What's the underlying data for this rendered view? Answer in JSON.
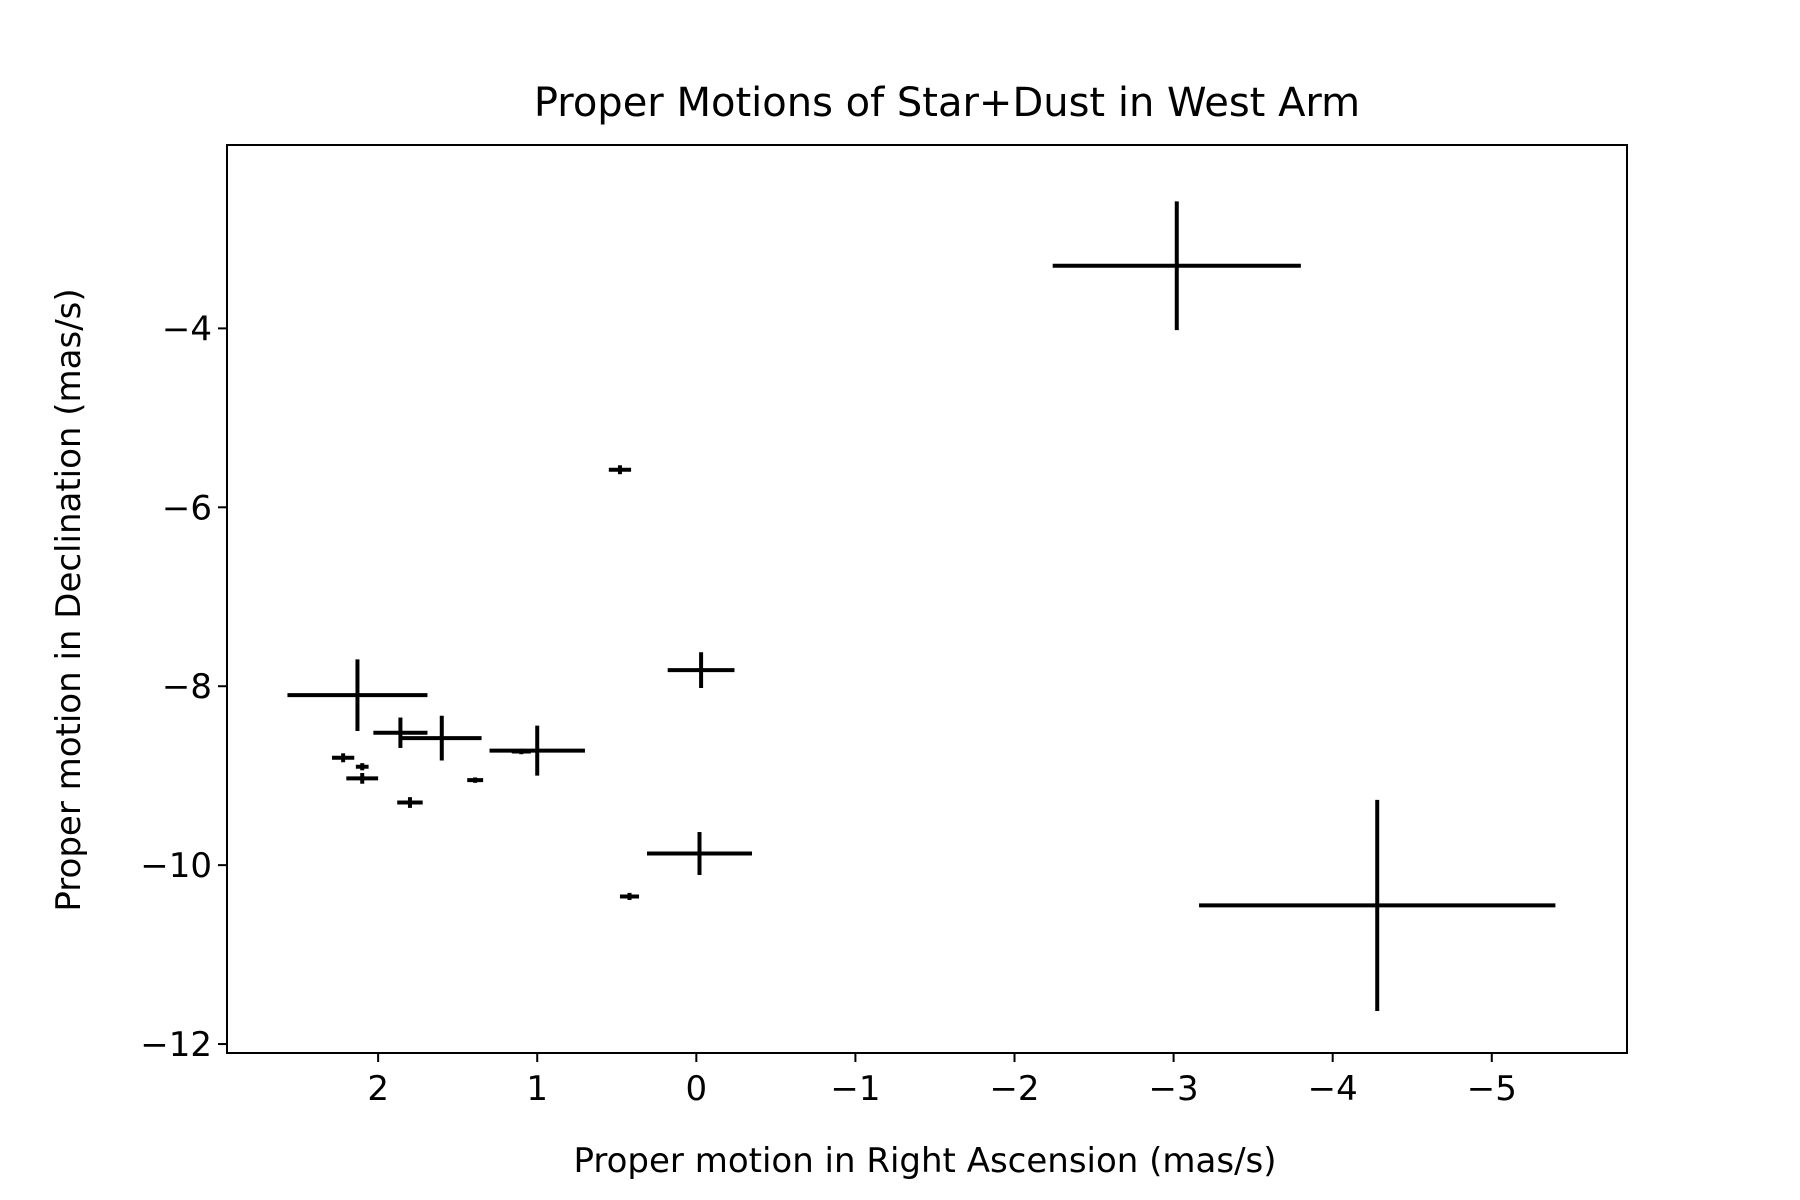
{
  "chart_data": {
    "type": "scatter",
    "title": "Proper Motions of Star+Dust in West Arm",
    "xlabel": "Proper motion in Right Ascension (mas/s)",
    "ylabel": "Proper motion in Declination (mas/s)",
    "xlim": [
      2.95,
      -5.85
    ],
    "ylim": [
      -12.1,
      -1.95
    ],
    "x_ticks": [
      2,
      1,
      0,
      -1,
      -2,
      -3,
      -4,
      -5
    ],
    "x_tick_labels": [
      "2",
      "1",
      "0",
      "−1",
      "−2",
      "−3",
      "−4",
      "−5"
    ],
    "y_ticks": [
      -4,
      -6,
      -8,
      -10,
      -12
    ],
    "y_tick_labels": [
      "−4",
      "−6",
      "−8",
      "−10",
      "−12"
    ],
    "grid": false,
    "marker_color": "#000000",
    "points": [
      {
        "x": -3.02,
        "y": -3.3,
        "xerr": 0.78,
        "yerr": 0.72
      },
      {
        "x": -4.28,
        "y": -10.45,
        "xerr": 1.12,
        "yerr": 1.18
      },
      {
        "x": 0.48,
        "y": -5.58,
        "xerr": 0.07,
        "yerr": 0.05
      },
      {
        "x": -0.03,
        "y": -7.82,
        "xerr": 0.21,
        "yerr": 0.2
      },
      {
        "x": -0.02,
        "y": -9.87,
        "xerr": 0.33,
        "yerr": 0.24
      },
      {
        "x": 0.42,
        "y": -10.35,
        "xerr": 0.06,
        "yerr": 0.04
      },
      {
        "x": 2.13,
        "y": -8.1,
        "xerr": 0.44,
        "yerr": 0.4
      },
      {
        "x": 1.86,
        "y": -8.52,
        "xerr": 0.17,
        "yerr": 0.17
      },
      {
        "x": 1.6,
        "y": -8.58,
        "xerr": 0.25,
        "yerr": 0.25
      },
      {
        "x": 1.0,
        "y": -8.72,
        "xerr": 0.3,
        "yerr": 0.28
      },
      {
        "x": 1.1,
        "y": -8.73,
        "xerr": 0.06,
        "yerr": 0.03
      },
      {
        "x": 2.22,
        "y": -8.8,
        "xerr": 0.07,
        "yerr": 0.05
      },
      {
        "x": 2.1,
        "y": -8.9,
        "xerr": 0.04,
        "yerr": 0.04
      },
      {
        "x": 2.1,
        "y": -9.03,
        "xerr": 0.1,
        "yerr": 0.06
      },
      {
        "x": 1.8,
        "y": -9.3,
        "xerr": 0.08,
        "yerr": 0.06
      },
      {
        "x": 1.39,
        "y": -9.05,
        "xerr": 0.05,
        "yerr": 0.03
      }
    ]
  }
}
